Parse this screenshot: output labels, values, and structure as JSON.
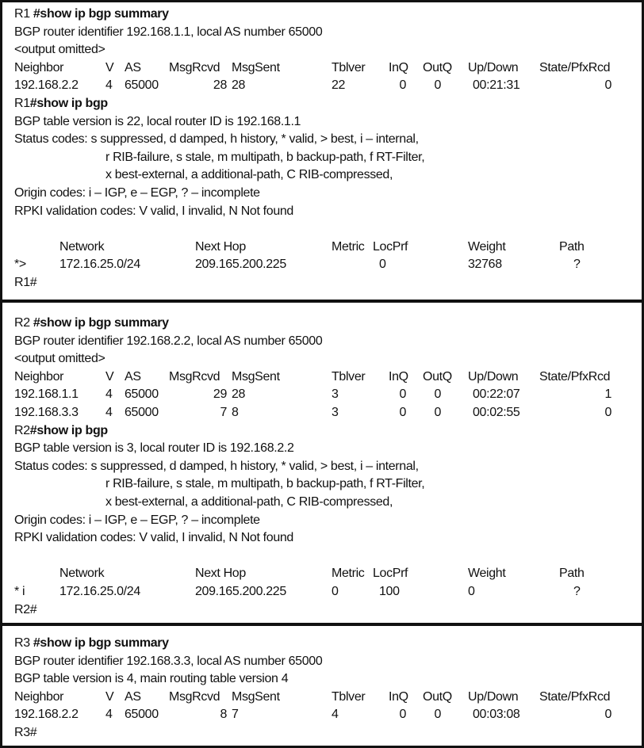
{
  "sections": [
    {
      "prompt": "R1 ",
      "command": "#show ip bgp summary",
      "identifier_line": "BGP router identifier 192.168.1.1, local AS number 65000",
      "info_line": "<output omitted>",
      "summary_headers": [
        "Neighbor",
        "V",
        "AS",
        "MsgRcvd",
        "MsgSent",
        "Tblver",
        "InQ",
        "OutQ",
        "Up/Down",
        "State/PfxRcd"
      ],
      "neighbors": [
        [
          "192.168.2.2",
          "4",
          "65000",
          "28",
          "28",
          "22",
          "0",
          "0",
          "00:21:31",
          "0"
        ]
      ],
      "bgp_prompt": "R1",
      "bgp_command": "#show ip bgp",
      "table_version_line": "BGP table version is 22, local router ID is 192.168.1.1",
      "status_lines": [
        "Status codes: s suppressed, d damped, h history, * valid, > best, i – internal,",
        "r RIB-failure, s stale, m multipath, b backup-path, f RT-Filter,",
        "x best-external, a additional-path, C RIB-compressed,"
      ],
      "origin_line": "Origin codes: i – IGP, e – EGP, ? – incomplete",
      "rpki_line": "RPKI validation codes: V valid, I invalid, N Not found",
      "route_headers": [
        "",
        "Network",
        "Next Hop",
        "Metric",
        "LocPrf",
        "Weight",
        "Path"
      ],
      "routes": [
        [
          "*>",
          "172.16.25.0/24",
          "209.165.200.225",
          "",
          "0",
          "32768",
          "?"
        ]
      ],
      "end_prompt": "R1#"
    },
    {
      "prompt": "R2 ",
      "command": "#show ip bgp summary",
      "identifier_line": "BGP router identifier 192.168.2.2, local AS number 65000",
      "info_line": "<output omitted>",
      "summary_headers": [
        "Neighbor",
        "V",
        "AS",
        "MsgRcvd",
        "MsgSent",
        "Tblver",
        "InQ",
        "OutQ",
        "Up/Down",
        "State/PfxRcd"
      ],
      "neighbors": [
        [
          "192.168.1.1",
          "4",
          "65000",
          "29",
          "28",
          "3",
          "0",
          "0",
          "00:22:07",
          "1"
        ],
        [
          "192.168.3.3",
          "4",
          "65000",
          "7",
          "8",
          "3",
          "0",
          "0",
          "00:02:55",
          "0"
        ]
      ],
      "bgp_prompt": "R2",
      "bgp_command": "#show ip bgp",
      "table_version_line": "BGP table version is 3, local router ID is 192.168.2.2",
      "status_lines": [
        "Status codes: s suppressed, d damped, h history, * valid, > best, i – internal,",
        "r RIB-failure, s stale, m multipath, b backup-path, f RT-Filter,",
        "x best-external, a additional-path, C RIB-compressed,"
      ],
      "origin_line": "Origin codes: i – IGP, e – EGP, ? – incomplete",
      "rpki_line": "RPKI validation codes: V valid, I invalid, N Not found",
      "route_headers": [
        "",
        "Network",
        "Next Hop",
        "Metric",
        "LocPrf",
        "Weight",
        "Path"
      ],
      "routes": [
        [
          "* i",
          "172.16.25.0/24",
          "209.165.200.225",
          "0",
          "100",
          "0",
          "?"
        ]
      ],
      "end_prompt": "R2#"
    },
    {
      "prompt": "R3 ",
      "command": "#show ip bgp summary",
      "identifier_line": "BGP router identifier 192.168.3.3, local AS number 65000",
      "info_line": "BGP table version is 4, main routing table version 4",
      "summary_headers": [
        "Neighbor",
        "V",
        "AS",
        "MsgRcvd",
        "MsgSent",
        "Tblver",
        "InQ",
        "OutQ",
        "Up/Down",
        "State/PfxRcd"
      ],
      "neighbors": [
        [
          "192.168.2.2",
          "4",
          "65000",
          "8",
          "7",
          "4",
          "0",
          "0",
          "00:03:08",
          "0"
        ]
      ],
      "end_prompt": "R3#"
    }
  ]
}
